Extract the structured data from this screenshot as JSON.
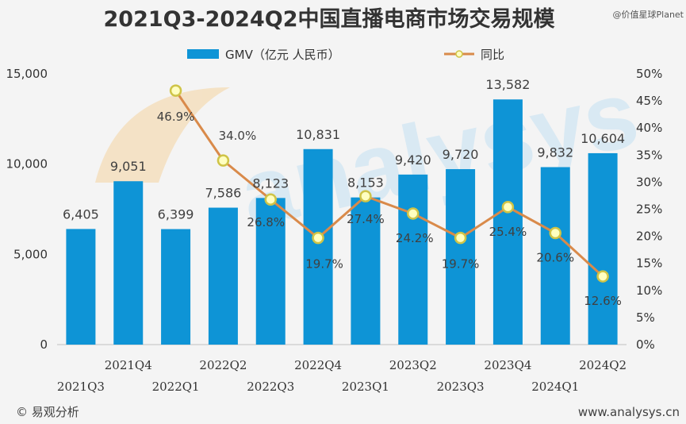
{
  "header": {
    "title": "2021Q3-2024Q2中国直播电商市场交易规模",
    "watermark": "@价值星球Planet"
  },
  "footer": {
    "source": "© 易观分析",
    "website": "www.analysys.cn"
  },
  "colors": {
    "bar": "#0e94d6",
    "line": "#d98a4a",
    "marker_fill": "#ffffc0",
    "marker_stroke": "#cfc447",
    "background": "#f4f4f4",
    "title": "#333333"
  },
  "chart_data": {
    "type": "bar",
    "title": "2021Q3-2024Q2中国直播电商市场交易规模",
    "categories": [
      "2021Q3",
      "2021Q4",
      "2022Q1",
      "2022Q2",
      "2022Q3",
      "2022Q4",
      "2023Q1",
      "2023Q2",
      "2023Q3",
      "2023Q4",
      "2024Q1",
      "2024Q2"
    ],
    "series": [
      {
        "name": "GMV（亿元 人民币）",
        "type": "bar",
        "axis": "left",
        "values": [
          6405,
          9051,
          6399,
          7586,
          8123,
          10831,
          8153,
          9420,
          9720,
          13582,
          9832,
          10604
        ],
        "labels": [
          "6,405",
          "9,051",
          "6,399",
          "7,586",
          "8,123",
          "10,831",
          "8,153",
          "9,420",
          "9,720",
          "13,582",
          "9,832",
          "10,604"
        ]
      },
      {
        "name": "同比",
        "type": "line",
        "axis": "right",
        "values": [
          null,
          null,
          46.9,
          34.0,
          26.8,
          19.7,
          27.4,
          24.2,
          19.7,
          25.4,
          20.6,
          12.6
        ],
        "labels": [
          "",
          "",
          "46.9%",
          "34.0%",
          "26.8%",
          "19.7%",
          "27.4%",
          "24.2%",
          "19.7%",
          "25.4%",
          "20.6%",
          "12.6%"
        ]
      }
    ],
    "left_axis": {
      "ylim": [
        0,
        15000
      ],
      "ticks": [
        0,
        5000,
        10000,
        15000
      ],
      "tick_labels": [
        "0",
        "5,000",
        "10,000",
        "15,000"
      ]
    },
    "right_axis": {
      "ylim": [
        0,
        50
      ],
      "ticks": [
        0,
        5,
        10,
        15,
        20,
        25,
        30,
        35,
        40,
        45,
        50
      ],
      "tick_labels": [
        "0%",
        "5%",
        "10%",
        "15%",
        "20%",
        "25%",
        "30%",
        "35%",
        "40%",
        "45%",
        "50%"
      ]
    },
    "grid": false,
    "legend_position": "top-center"
  }
}
